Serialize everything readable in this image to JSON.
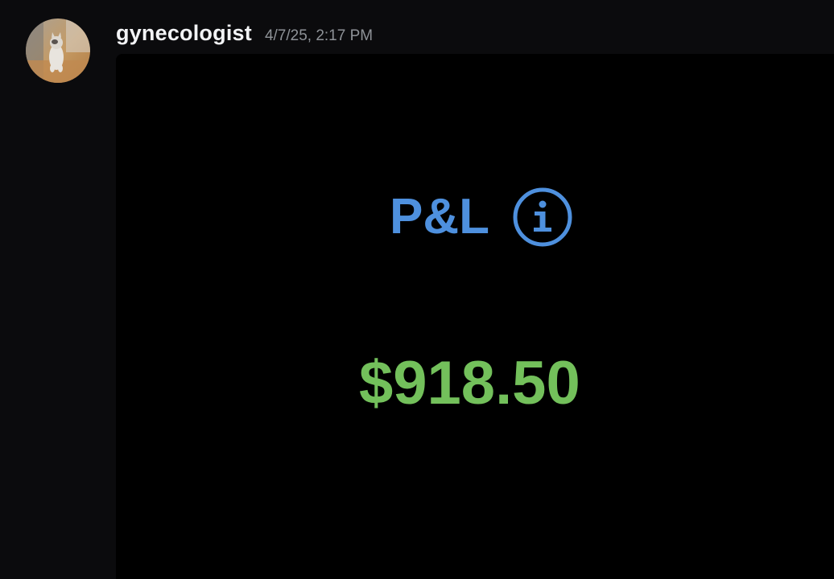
{
  "message": {
    "author": "gynecologist",
    "timestamp": "4/7/25, 2:17 PM",
    "avatar_icon": "cat-photo-avatar"
  },
  "attachment": {
    "title": "P&L",
    "info_icon": "info-circle-icon",
    "value": "$918.50"
  },
  "colors": {
    "background": "#0b0b0d",
    "attachment_bg": "#000000",
    "username": "#f2f3f5",
    "timestamp": "#8e9297",
    "accent_blue": "#4e90de",
    "profit_green": "#73c05b"
  }
}
